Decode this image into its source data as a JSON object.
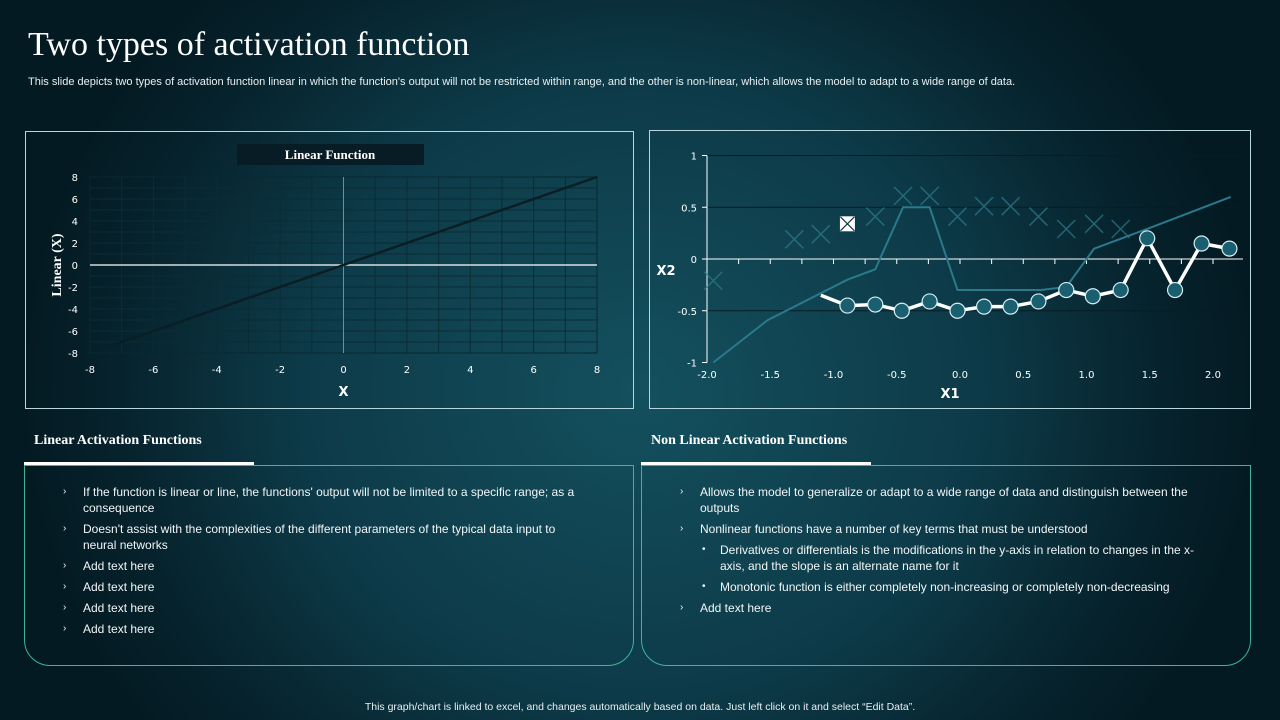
{
  "title": "Two types of activation function",
  "subtitle": "This slide depicts two types of activation function linear in which the function's output will not be restricted within range, and the other is non-linear, which allows the model to adapt to a wide range of data.",
  "chart_data": [
    {
      "type": "line",
      "title": "Linear Function",
      "xlabel": "X",
      "ylabel": "Linear (X)",
      "xlim": [
        -8,
        8
      ],
      "ylim": [
        -8,
        8
      ],
      "xticks": [
        "-8",
        "-6",
        "-4",
        "-2",
        "0",
        "2",
        "4",
        "6",
        "8"
      ],
      "yticks": [
        "8",
        "6",
        "4",
        "2",
        "0",
        "-2",
        "-4",
        "-6",
        "-8"
      ],
      "grid": true,
      "series": [
        {
          "points": [
            [
              -8,
              -8
            ],
            [
              8,
              8
            ]
          ],
          "color": "#0a1e26"
        }
      ]
    },
    {
      "type": "scatter",
      "title": "",
      "xlabel": "X1",
      "ylabel": "X2",
      "xlim": [
        -2.0,
        2.2
      ],
      "ylim": [
        -1,
        1
      ],
      "xticks": [
        "-2.0",
        "-1.5",
        "-1.0",
        "-0.5",
        "0.0",
        "0.5",
        "1.0",
        "1.5",
        "2.0"
      ],
      "yticks": [
        "1",
        "0.5",
        "0",
        "-0.5",
        "-1"
      ],
      "grid": true,
      "series": [
        {
          "kind": "line",
          "color": "#2a7a8c",
          "points": [
            [
              -1.95,
              -1
            ],
            [
              -1.52,
              -0.59
            ],
            [
              -0.89,
              -0.2
            ],
            [
              -0.67,
              -0.1
            ],
            [
              -0.45,
              0.5
            ],
            [
              -0.24,
              0.5
            ],
            [
              -0.02,
              -0.3
            ],
            [
              0.64,
              -0.3
            ],
            [
              0.84,
              -0.27
            ],
            [
              1.06,
              0.1
            ],
            [
              1.5,
              0.3
            ],
            [
              2.14,
              0.6
            ]
          ]
        },
        {
          "kind": "x-markers",
          "color": "#2f7d8e",
          "highlighted_index": 3,
          "points": [
            [
              -1.95,
              -0.21
            ],
            [
              -1.31,
              0.19
            ],
            [
              -1.1,
              0.24
            ],
            [
              -0.89,
              0.34
            ],
            [
              -0.67,
              0.41
            ],
            [
              -0.45,
              0.61
            ],
            [
              -0.24,
              0.61
            ],
            [
              -0.02,
              0.41
            ],
            [
              0.19,
              0.51
            ],
            [
              0.4,
              0.51
            ],
            [
              0.62,
              0.41
            ],
            [
              0.84,
              0.29
            ],
            [
              1.06,
              0.34
            ],
            [
              1.27,
              0.29
            ]
          ]
        },
        {
          "kind": "line-markers",
          "color": "#ffffff",
          "marker_color": "#1a5f70",
          "start": [
            -1.1,
            -0.35
          ],
          "points": [
            [
              -0.89,
              -0.45
            ],
            [
              -0.67,
              -0.44
            ],
            [
              -0.46,
              -0.5
            ],
            [
              -0.24,
              -0.41
            ],
            [
              -0.02,
              -0.5
            ],
            [
              0.19,
              -0.46
            ],
            [
              0.4,
              -0.46
            ],
            [
              0.62,
              -0.41
            ],
            [
              0.84,
              -0.3
            ],
            [
              1.05,
              -0.36
            ],
            [
              1.27,
              -0.3
            ],
            [
              1.48,
              0.2
            ],
            [
              1.7,
              -0.3
            ],
            [
              1.91,
              0.15
            ],
            [
              2.13,
              0.1
            ]
          ]
        }
      ]
    }
  ],
  "linear": {
    "heading": "Linear Activation Functions",
    "items": [
      {
        "text": "If the function is linear or line,  the functions' output will not be limited to a specific range; as a consequence",
        "sub": false
      },
      {
        "text": "Doesn't assist with the complexities of the different parameters of the typical data input to neural networks",
        "sub": false
      },
      {
        "text": "Add text here",
        "sub": false
      },
      {
        "text": "Add text here",
        "sub": false
      },
      {
        "text": "Add text here",
        "sub": false
      },
      {
        "text": "Add text here",
        "sub": false
      }
    ]
  },
  "nonlinear": {
    "heading": "Non Linear Activation Functions",
    "items": [
      {
        "text": "Allows the model to generalize or adapt to a wide range of data and distinguish between the outputs",
        "sub": false
      },
      {
        "text": "Nonlinear functions have a number of key terms that must be understood",
        "sub": false
      },
      {
        "text": "Derivatives or differentials is the modifications in the y-axis in relation to changes in the x-axis, and the slope is an alternate name for it",
        "sub": true
      },
      {
        "text": "Monotonic function is either completely non-increasing or completely non-decreasing",
        "sub": true
      },
      {
        "text": "Add text here",
        "sub": false
      }
    ]
  },
  "footer": "This graph/chart is linked to excel, and changes automatically based on data. Just left click on it and select “Edit Data”."
}
